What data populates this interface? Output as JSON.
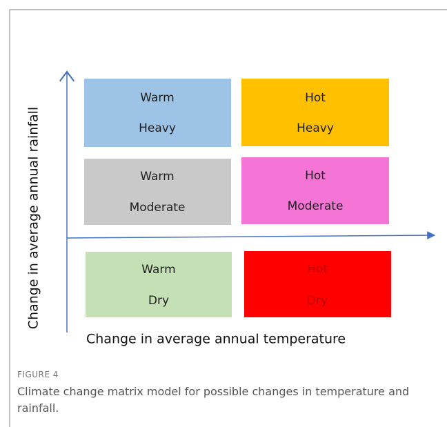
{
  "axes": {
    "y_label": "Change in average annual rainfall",
    "x_label": "Change in average annual temperature"
  },
  "cells": [
    {
      "line1": "Warm",
      "line2": "Heavy"
    },
    {
      "line1": "Hot",
      "line2": "Heavy"
    },
    {
      "line1": "Warm",
      "line2": "Moderate"
    },
    {
      "line1": "Hot",
      "line2": "Moderate"
    },
    {
      "line1": "Warm",
      "line2": "Dry"
    },
    {
      "line1": "Hot",
      "line2": "Dry"
    }
  ],
  "figure": {
    "label": "FIGURE 4",
    "caption": "Climate change matrix model for possible changes in temperature and rainfall."
  }
}
